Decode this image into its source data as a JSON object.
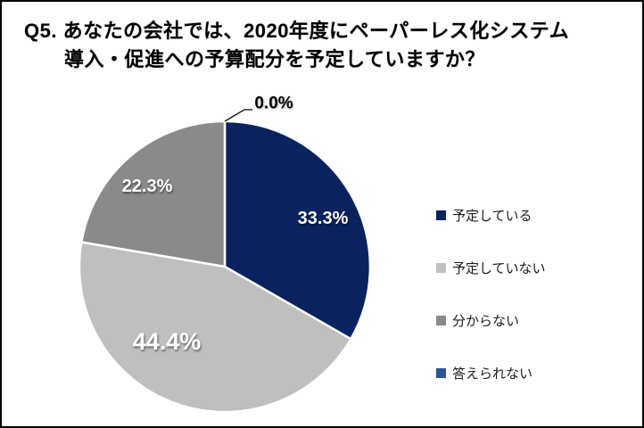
{
  "title": {
    "line1": "Q5. あなたの会社では、2020年度にペーパーレス化システム",
    "line2": "導入・促進への予算配分を予定していますか？"
  },
  "chart_data": {
    "type": "pie",
    "title": "Q5. あなたの会社では、2020年度にペーパーレス化システム導入・促進への予算配分を予定していますか？",
    "start_angle_deg": 0,
    "direction": "clockwise",
    "legend_position": "right",
    "slices": [
      {
        "label": "予定している",
        "value": 33.3,
        "display": "33.3%",
        "color": "#0A235F",
        "label_color": "#ffffff"
      },
      {
        "label": "予定していない",
        "value": 44.4,
        "display": "44.4%",
        "color": "#BFBFBF",
        "label_color": "#ffffff"
      },
      {
        "label": "分からない",
        "value": 22.3,
        "display": "22.3%",
        "color": "#8A8A8A",
        "label_color": "#ffffff"
      },
      {
        "label": "答えられない",
        "value": 0.0,
        "display": "0.0%",
        "color": "#2F5597",
        "label_color": "#000000"
      }
    ]
  }
}
